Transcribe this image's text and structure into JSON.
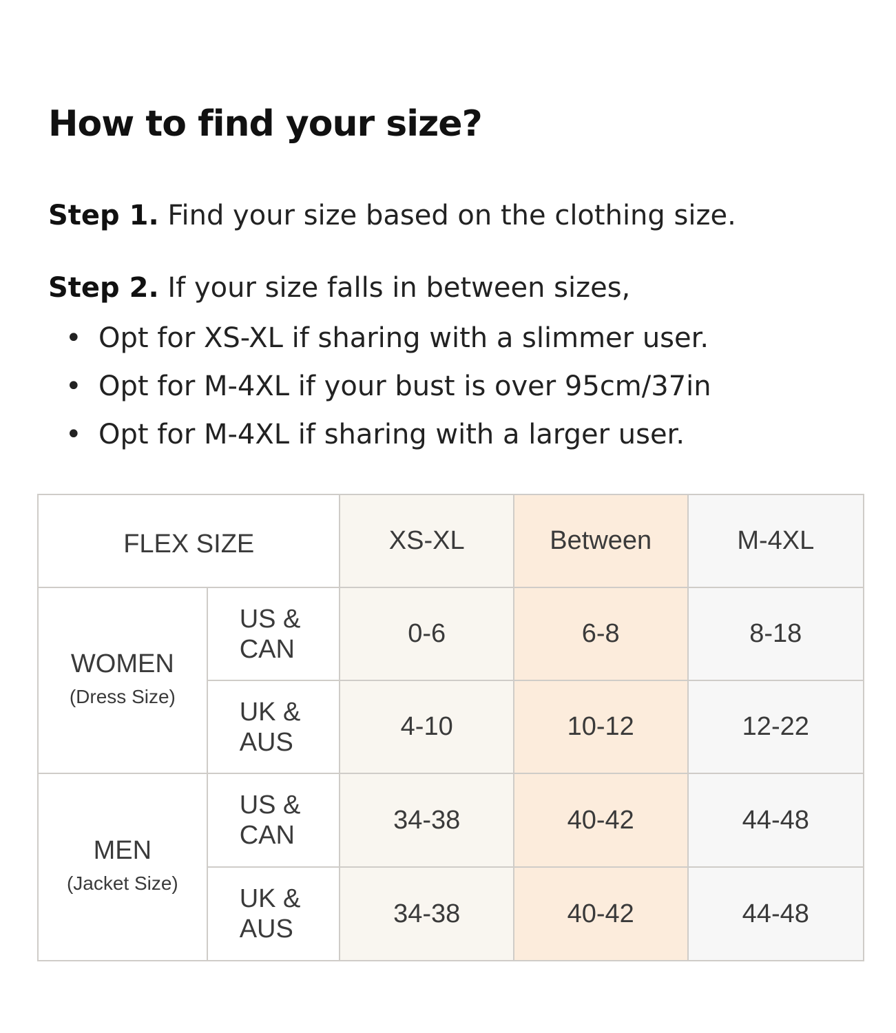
{
  "title": "How to find your size?",
  "step1": {
    "label": "Step 1.",
    "text": "Find your size based on the clothing size."
  },
  "step2": {
    "label": "Step 2.",
    "text": "If your size falls in between sizes,",
    "bullets": [
      "Opt for XS-XL if sharing with a slimmer user.",
      "Opt for M-4XL if your bust is over 95cm/37in",
      "Opt for M-4XL if sharing with a larger user."
    ]
  },
  "table": {
    "header": {
      "label": "FLEX SIZE",
      "columns": [
        "XS-XL",
        "Between",
        "M-4XL"
      ]
    },
    "column_colors": [
      "#f9f6f0",
      "#fcecdc",
      "#f7f7f7"
    ],
    "groups": [
      {
        "name": "WOMEN",
        "sub": "(Dress Size)",
        "rows": [
          {
            "region_line1": "US &",
            "region_line2": "CAN",
            "values": [
              "0-6",
              "6-8",
              "8-18"
            ]
          },
          {
            "region_line1": "UK &",
            "region_line2": "AUS",
            "values": [
              "4-10",
              "10-12",
              "12-22"
            ]
          }
        ]
      },
      {
        "name": "MEN",
        "sub": "(Jacket Size)",
        "rows": [
          {
            "region_line1": "US &",
            "region_line2": "CAN",
            "values": [
              "34-38",
              "40-42",
              "44-48"
            ]
          },
          {
            "region_line1": "UK &",
            "region_line2": "AUS",
            "values": [
              "34-38",
              "40-42",
              "44-48"
            ]
          }
        ]
      }
    ]
  }
}
